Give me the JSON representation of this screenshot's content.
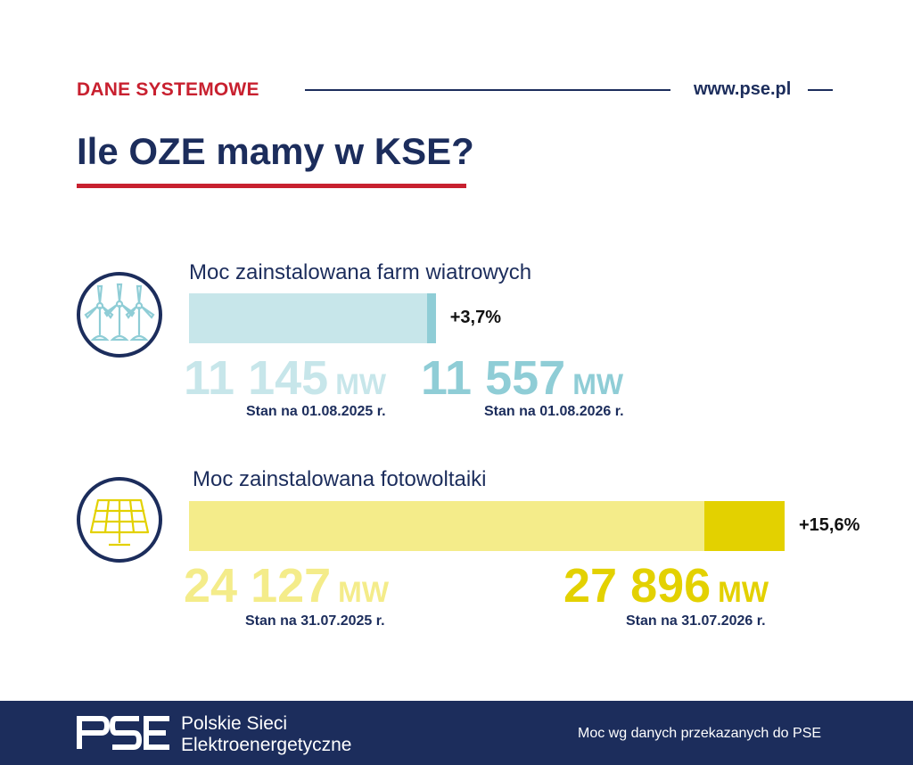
{
  "header": {
    "kicker": "DANE SYSTEMOWE",
    "url": "www.pse.pl",
    "title": "Ile OZE mamy w KSE?"
  },
  "chart_data": [
    {
      "type": "bar",
      "title": "Moc zainstalowana farm wiatrowych",
      "unit": "MW",
      "series": [
        {
          "value": 11145,
          "label": "11 145",
          "date_label": "Stan na 01.08.2025 r."
        },
        {
          "value": 11557,
          "label": "11 557",
          "date_label": "Stan na 01.08.2026 r."
        }
      ],
      "change_label": "+3,7%",
      "colors": {
        "before": "#c7e6ea",
        "after": "#8fcdd6"
      },
      "icon": "wind-turbine-icon"
    },
    {
      "type": "bar",
      "title": "Moc zainstalowana fotowoltaiki",
      "unit": "MW",
      "series": [
        {
          "value": 24127,
          "label": "24 127",
          "date_label": "Stan na 31.07.2025 r."
        },
        {
          "value": 27896,
          "label": "27 896",
          "date_label": "Stan na 31.07.2026 r."
        }
      ],
      "change_label": "+15,6%",
      "colors": {
        "before": "#f4ec8a",
        "after": "#e3d100"
      },
      "icon": "solar-panel-icon"
    }
  ],
  "footer": {
    "logo_mark": "PSE",
    "company_line1": "Polskie Sieci",
    "company_line2": "Elektroenergetyczne",
    "note": "Moc wg danych przekazanych do PSE"
  }
}
